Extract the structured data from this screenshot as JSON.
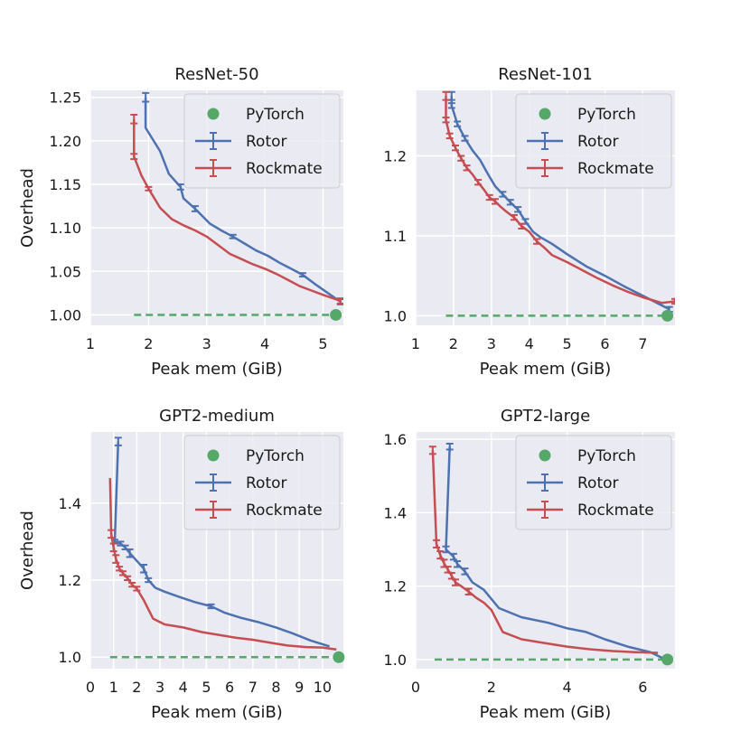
{
  "chart_data": [
    {
      "type": "line",
      "title": "ResNet-50",
      "xlabel": "Peak mem (GiB)",
      "ylabel": "Overhead",
      "xlim": [
        1,
        5.35
      ],
      "ylim": [
        0.988,
        1.258
      ],
      "xticks": [
        1,
        2,
        3,
        4,
        5
      ],
      "yticks": [
        1.0,
        1.05,
        1.1,
        1.15,
        1.2,
        1.25
      ],
      "ytick_labels": [
        "1.00",
        "1.05",
        "1.10",
        "1.15",
        "1.20",
        "1.25"
      ],
      "grid": true,
      "legend": "top-right",
      "series": [
        {
          "name": "PyTorch",
          "kind": "point",
          "color": "#55a868",
          "x": [
            5.22
          ],
          "y": [
            1.0
          ]
        },
        {
          "name": "PyTorch-baseline",
          "kind": "dashed",
          "color": "#55a868",
          "x": [
            1.75,
            5.22
          ],
          "y": [
            1.0,
            1.0
          ]
        },
        {
          "name": "Rotor",
          "kind": "line",
          "color": "#4c72b0",
          "x": [
            1.95,
            1.95,
            2.2,
            2.35,
            2.55,
            2.6,
            2.8,
            3.05,
            3.25,
            3.45,
            3.65,
            3.85,
            4.05,
            4.25,
            4.45,
            4.65,
            4.85,
            5.3
          ],
          "y": [
            1.25,
            1.215,
            1.188,
            1.162,
            1.147,
            1.134,
            1.122,
            1.105,
            1.097,
            1.09,
            1.082,
            1.074,
            1.068,
            1.06,
            1.053,
            1.046,
            1.036,
            1.015
          ],
          "err": [
            0.005,
            0,
            0,
            0,
            0.003,
            0,
            0.003,
            0,
            0,
            0.002,
            0,
            0,
            0,
            0,
            0,
            0.002,
            0,
            0.003
          ]
        },
        {
          "name": "Rockmate",
          "kind": "line",
          "color": "#c44e52",
          "x": [
            1.75,
            1.75,
            1.88,
            2.0,
            2.2,
            2.4,
            2.6,
            2.8,
            3.0,
            3.2,
            3.4,
            3.6,
            3.8,
            4.0,
            4.2,
            4.4,
            4.6,
            4.8,
            5.0,
            5.3
          ],
          "y": [
            1.225,
            1.182,
            1.16,
            1.145,
            1.123,
            1.11,
            1.103,
            1.097,
            1.09,
            1.08,
            1.07,
            1.064,
            1.058,
            1.053,
            1.047,
            1.04,
            1.033,
            1.028,
            1.023,
            1.016
          ],
          "err": [
            0.005,
            0.003,
            0,
            0.002,
            0,
            0,
            0,
            0,
            0,
            0,
            0,
            0,
            0,
            0,
            0,
            0,
            0,
            0,
            0,
            0.003
          ]
        }
      ]
    },
    {
      "type": "line",
      "title": "ResNet-101",
      "xlabel": "Peak mem (GiB)",
      "ylabel": "",
      "xlim": [
        1,
        7.85
      ],
      "ylim": [
        0.988,
        1.282
      ],
      "xticks": [
        1,
        2,
        3,
        4,
        5,
        6,
        7
      ],
      "yticks": [
        1.0,
        1.1,
        1.2
      ],
      "ytick_labels": [
        "1.0",
        "1.1",
        "1.2"
      ],
      "grid": true,
      "legend": "top-right",
      "series": [
        {
          "name": "PyTorch",
          "kind": "point",
          "color": "#55a868",
          "x": [
            7.65
          ],
          "y": [
            1.0
          ]
        },
        {
          "name": "PyTorch-baseline",
          "kind": "dashed",
          "color": "#55a868",
          "x": [
            1.8,
            7.65
          ],
          "y": [
            1.0,
            1.0
          ]
        },
        {
          "name": "Rotor",
          "kind": "line",
          "color": "#4c72b0",
          "x": [
            1.95,
            1.95,
            2.1,
            2.3,
            2.5,
            2.7,
            2.9,
            3.1,
            3.3,
            3.5,
            3.7,
            3.9,
            4.1,
            4.3,
            4.6,
            5.0,
            5.5,
            6.0,
            6.5,
            7.0,
            7.7
          ],
          "y": [
            1.275,
            1.263,
            1.24,
            1.222,
            1.207,
            1.195,
            1.178,
            1.162,
            1.152,
            1.142,
            1.133,
            1.118,
            1.105,
            1.098,
            1.09,
            1.077,
            1.062,
            1.05,
            1.037,
            1.025,
            1.008
          ],
          "err": [
            0.005,
            0.003,
            0.003,
            0.003,
            0,
            0,
            0,
            0,
            0.003,
            0.003,
            0.003,
            0.003,
            0,
            0,
            0,
            0,
            0,
            0,
            0,
            0,
            0.003
          ]
        },
        {
          "name": "Rockmate",
          "kind": "line",
          "color": "#c44e52",
          "x": [
            1.8,
            1.8,
            1.9,
            2.05,
            2.2,
            2.35,
            2.5,
            2.65,
            2.8,
            2.95,
            3.1,
            3.25,
            3.4,
            3.6,
            3.8,
            4.0,
            4.2,
            4.4,
            4.6,
            5.0,
            5.4,
            5.8,
            6.2,
            6.6,
            7.0,
            7.5,
            7.85
          ],
          "y": [
            1.275,
            1.245,
            1.225,
            1.21,
            1.197,
            1.185,
            1.177,
            1.167,
            1.158,
            1.148,
            1.143,
            1.136,
            1.13,
            1.123,
            1.112,
            1.105,
            1.093,
            1.085,
            1.076,
            1.067,
            1.057,
            1.047,
            1.038,
            1.03,
            1.023,
            1.016,
            1.018
          ],
          "err": [
            0.005,
            0.003,
            0.003,
            0.003,
            0.003,
            0.003,
            0,
            0.003,
            0,
            0.003,
            0.003,
            0,
            0,
            0.003,
            0.003,
            0,
            0.003,
            0,
            0,
            0,
            0,
            0,
            0,
            0,
            0,
            0,
            0.003
          ]
        }
      ]
    },
    {
      "type": "line",
      "title": "GPT2-medium",
      "xlabel": "Peak mem (GiB)",
      "ylabel": "Overhead",
      "xlim": [
        0,
        10.9
      ],
      "ylim": [
        0.97,
        1.585
      ],
      "xticks": [
        0,
        1,
        2,
        3,
        4,
        5,
        6,
        7,
        8,
        9,
        10
      ],
      "yticks": [
        1.0,
        1.2,
        1.4
      ],
      "ytick_labels": [
        "1.0",
        "1.2",
        "1.4"
      ],
      "grid": true,
      "legend": "top-right",
      "series": [
        {
          "name": "PyTorch",
          "kind": "point",
          "color": "#55a868",
          "x": [
            10.7
          ],
          "y": [
            1.0
          ]
        },
        {
          "name": "PyTorch-baseline",
          "kind": "dashed",
          "color": "#55a868",
          "x": [
            0.85,
            10.7
          ],
          "y": [
            1.0,
            1.0
          ]
        },
        {
          "name": "Rotor",
          "kind": "line",
          "color": "#4c72b0",
          "x": [
            1.2,
            1.05,
            1.3,
            1.5,
            1.7,
            2.0,
            2.3,
            2.5,
            2.8,
            3.2,
            3.8,
            4.5,
            5.2,
            5.8,
            6.5,
            7.3,
            8.0,
            8.7,
            9.5,
            10.3
          ],
          "y": [
            1.56,
            1.3,
            1.295,
            1.285,
            1.27,
            1.25,
            1.23,
            1.2,
            1.18,
            1.17,
            1.157,
            1.143,
            1.132,
            1.115,
            1.102,
            1.09,
            1.077,
            1.062,
            1.043,
            1.028
          ],
          "err": [
            0.01,
            0.005,
            0.005,
            0.005,
            0.01,
            0,
            0.01,
            0.005,
            0,
            0,
            0,
            0,
            0.005,
            0,
            0,
            0,
            0,
            0,
            0,
            0
          ]
        },
        {
          "name": "Rockmate",
          "kind": "line",
          "color": "#c44e52",
          "x": [
            0.85,
            0.9,
            1.0,
            1.1,
            1.25,
            1.4,
            1.6,
            1.8,
            2.0,
            2.3,
            2.7,
            3.2,
            4.0,
            4.8,
            5.5,
            6.3,
            7.0,
            7.8,
            8.5,
            9.3,
            10.0,
            10.6
          ],
          "y": [
            1.465,
            1.32,
            1.285,
            1.255,
            1.23,
            1.218,
            1.205,
            1.188,
            1.178,
            1.148,
            1.1,
            1.085,
            1.077,
            1.065,
            1.058,
            1.05,
            1.045,
            1.037,
            1.03,
            1.026,
            1.025,
            1.02
          ],
          "err": [
            0,
            0.01,
            0.01,
            0.01,
            0.005,
            0.005,
            0.005,
            0.005,
            0.005,
            0,
            0,
            0,
            0,
            0,
            0,
            0,
            0,
            0,
            0,
            0,
            0,
            0
          ]
        }
      ]
    },
    {
      "type": "line",
      "title": "GPT2-large",
      "xlabel": "Peak mem (GiB)",
      "ylabel": "",
      "xlim": [
        0,
        6.85
      ],
      "ylim": [
        0.975,
        1.62
      ],
      "xticks": [
        0,
        2,
        4,
        6
      ],
      "yticks": [
        1.0,
        1.2,
        1.4,
        1.6
      ],
      "ytick_labels": [
        "1.0",
        "1.2",
        "1.4",
        "1.6"
      ],
      "grid": true,
      "legend": "top-right",
      "series": [
        {
          "name": "PyTorch",
          "kind": "point",
          "color": "#55a868",
          "x": [
            6.65
          ],
          "y": [
            1.0
          ]
        },
        {
          "name": "PyTorch-baseline",
          "kind": "dashed",
          "color": "#55a868",
          "x": [
            0.5,
            6.65
          ],
          "y": [
            1.0,
            1.0
          ]
        },
        {
          "name": "Rotor",
          "kind": "line",
          "color": "#4c72b0",
          "x": [
            0.9,
            0.8,
            0.9,
            1.0,
            1.1,
            1.3,
            1.5,
            1.8,
            2.2,
            2.8,
            3.5,
            4.0,
            4.5,
            5.0,
            5.6,
            6.2,
            6.7
          ],
          "y": [
            1.58,
            1.3,
            1.29,
            1.28,
            1.26,
            1.24,
            1.21,
            1.19,
            1.14,
            1.115,
            1.1,
            1.085,
            1.075,
            1.055,
            1.035,
            1.02,
            0.995
          ],
          "err": [
            0.008,
            0.008,
            0,
            0.008,
            0.008,
            0.008,
            0,
            0,
            0,
            0,
            0,
            0,
            0,
            0,
            0,
            0,
            0
          ]
        },
        {
          "name": "Rockmate",
          "kind": "line",
          "color": "#c44e52",
          "x": [
            0.45,
            0.55,
            0.65,
            0.75,
            0.85,
            0.95,
            1.05,
            1.2,
            1.4,
            1.6,
            1.8,
            2.0,
            2.3,
            2.8,
            3.4,
            4.0,
            4.6,
            5.2,
            5.8,
            6.4
          ],
          "y": [
            1.57,
            1.315,
            1.285,
            1.262,
            1.245,
            1.228,
            1.21,
            1.2,
            1.185,
            1.168,
            1.155,
            1.135,
            1.075,
            1.055,
            1.045,
            1.035,
            1.028,
            1.023,
            1.02,
            1.018
          ],
          "err": [
            0.01,
            0.01,
            0.01,
            0.01,
            0.008,
            0.008,
            0.008,
            0,
            0.008,
            0,
            0,
            0,
            0,
            0,
            0,
            0,
            0,
            0,
            0,
            0
          ]
        }
      ]
    }
  ],
  "legend_labels": [
    "PyTorch",
    "Rotor",
    "Rockmate"
  ],
  "colors": {
    "pytorch": "#55a868",
    "rotor": "#4c72b0",
    "rockmate": "#c44e52",
    "plot_bg": "#eaeaf2",
    "grid": "#ffffff"
  }
}
